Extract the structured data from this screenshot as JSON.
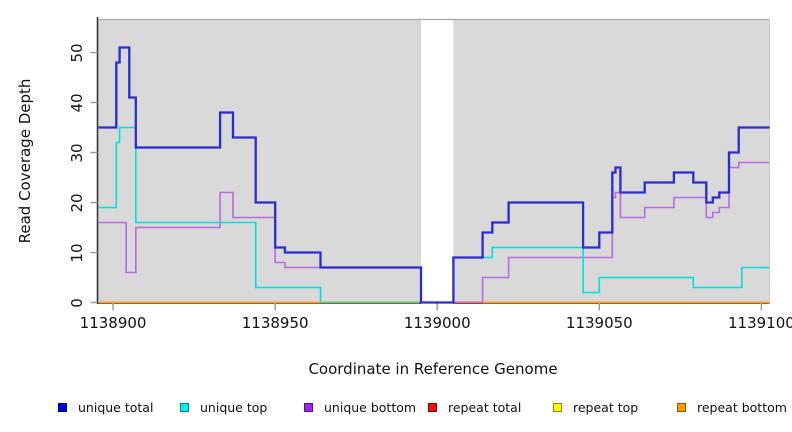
{
  "chart_data": {
    "type": "line",
    "subtype": "step-coverage",
    "title": "",
    "xlabel": "Coordinate in Reference Genome",
    "ylabel": "Read Coverage Depth",
    "xlim": [
      1138895.5,
      1139102.5
    ],
    "ylim": [
      0,
      56.5
    ],
    "x_ticks": [
      1138900,
      1138950,
      1139000,
      1139050,
      1139100
    ],
    "y_ticks": [
      0,
      10,
      20,
      30,
      40,
      50
    ],
    "grid": "off",
    "panel_background": "#d9d9d9",
    "panel_border_color": "#a9a9a9",
    "axis_color": "#2e2e2e",
    "tick_color": "#969696",
    "masked_gap": {
      "start": 1138995,
      "end": 1139005
    },
    "series": [
      {
        "name": "unique total",
        "color": "#2b2bd0",
        "legend_color": "#0000dd",
        "width": 2.3,
        "segments": [
          [
            1138895.5,
            1138901,
            35
          ],
          [
            1138901,
            1138902,
            48
          ],
          [
            1138902,
            1138905,
            51
          ],
          [
            1138905,
            1138907,
            41
          ],
          [
            1138907,
            1138933,
            31
          ],
          [
            1138933,
            1138937,
            38
          ],
          [
            1138937,
            1138944,
            33
          ],
          [
            1138944,
            1138950,
            20
          ],
          [
            1138950,
            1138953,
            11
          ],
          [
            1138953,
            1138964,
            10
          ],
          [
            1138964,
            1138995,
            7
          ],
          [
            1138995,
            1139005,
            0
          ],
          [
            1139005,
            1139014,
            9
          ],
          [
            1139014,
            1139017,
            14
          ],
          [
            1139017,
            1139022,
            16
          ],
          [
            1139022,
            1139045,
            20
          ],
          [
            1139045,
            1139050,
            11
          ],
          [
            1139050,
            1139054,
            14
          ],
          [
            1139054,
            1139055,
            26
          ],
          [
            1139055,
            1139056.5,
            27
          ],
          [
            1139056.5,
            1139064,
            22
          ],
          [
            1139064,
            1139073,
            24
          ],
          [
            1139073,
            1139079,
            26
          ],
          [
            1139079,
            1139083,
            24
          ],
          [
            1139083,
            1139085,
            20
          ],
          [
            1139085,
            1139087,
            21
          ],
          [
            1139087,
            1139090,
            22
          ],
          [
            1139090,
            1139093,
            30
          ],
          [
            1139093,
            1139102.5,
            35
          ]
        ]
      },
      {
        "name": "unique top",
        "color": "#00dfdf",
        "legend_color": "#00eeee",
        "width": 1.6,
        "segments": [
          [
            1138895.5,
            1138901,
            19
          ],
          [
            1138901,
            1138902,
            32
          ],
          [
            1138902,
            1138907,
            35
          ],
          [
            1138907,
            1138944,
            16
          ],
          [
            1138944,
            1138964,
            3
          ],
          [
            1138964,
            1139005,
            0
          ],
          [
            1139005,
            1139017,
            9
          ],
          [
            1139017,
            1139045,
            11
          ],
          [
            1139045,
            1139050,
            2
          ],
          [
            1139050,
            1139079,
            5
          ],
          [
            1139079,
            1139094,
            3
          ],
          [
            1139094,
            1139102.5,
            7
          ]
        ]
      },
      {
        "name": "unique bottom",
        "color": "#ba6ae0",
        "legend_color": "#a020f0",
        "width": 1.6,
        "segments": [
          [
            1138895.5,
            1138904,
            16
          ],
          [
            1138904,
            1138907,
            6
          ],
          [
            1138907,
            1138933,
            15
          ],
          [
            1138933,
            1138937,
            22
          ],
          [
            1138937,
            1138950,
            17
          ],
          [
            1138950,
            1138953,
            8
          ],
          [
            1138953,
            1138995,
            7
          ],
          [
            1138995,
            1139014,
            0
          ],
          [
            1139014,
            1139022,
            5
          ],
          [
            1139022,
            1139054,
            9
          ],
          [
            1139054,
            1139055,
            21
          ],
          [
            1139055,
            1139056.5,
            22
          ],
          [
            1139056.5,
            1139064,
            17
          ],
          [
            1139064,
            1139073,
            19
          ],
          [
            1139073,
            1139083,
            21
          ],
          [
            1139083,
            1139085,
            17
          ],
          [
            1139085,
            1139087,
            18
          ],
          [
            1139087,
            1139090,
            19
          ],
          [
            1139090,
            1139093,
            27
          ],
          [
            1139093,
            1139102.5,
            28
          ]
        ]
      },
      {
        "name": "repeat total",
        "color": "#ee1111",
        "legend_color": "#ee1111",
        "width": 1.8,
        "segments": [
          [
            1138895.5,
            1139102.5,
            0
          ]
        ]
      },
      {
        "name": "repeat top",
        "color": "#ffff00",
        "legend_color": "#ffff00",
        "width": 1.8,
        "segments": [
          [
            1138895.5,
            1139102.5,
            0
          ]
        ]
      },
      {
        "name": "repeat bottom",
        "color": "#ff9d26",
        "legend_color": "#ff9900",
        "width": 2,
        "segments": [
          [
            1138895.5,
            1139102.5,
            0
          ]
        ]
      }
    ],
    "zero_line_overlap_segments": [
      {
        "from": 1138895.5,
        "to": 1138964,
        "color": "#ff9d26"
      },
      {
        "from": 1138964,
        "to": 1138995,
        "color": "#74c274"
      },
      {
        "from": 1139005,
        "to": 1139014,
        "color": "#e0628e"
      },
      {
        "from": 1139014,
        "to": 1139102.5,
        "color": "#ff9d26"
      }
    ],
    "legend": [
      {
        "label": "unique total",
        "color": "#0000dd"
      },
      {
        "label": "unique top",
        "color": "#00eeee"
      },
      {
        "label": "unique bottom",
        "color": "#a020f0"
      },
      {
        "label": "repeat total",
        "color": "#ee1111"
      },
      {
        "label": "repeat top",
        "color": "#ffff00"
      },
      {
        "label": "repeat bottom",
        "color": "#ff9900"
      }
    ],
    "legend_position": "bottom"
  }
}
